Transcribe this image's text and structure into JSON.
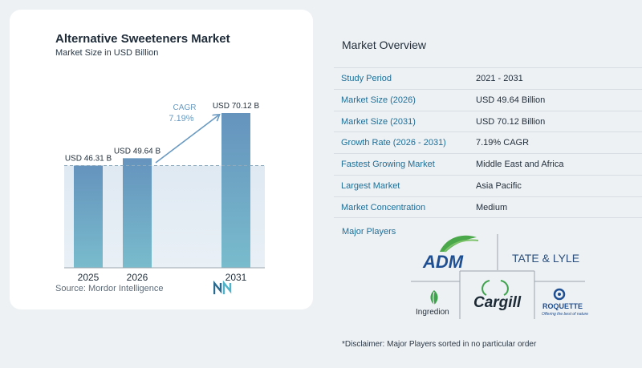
{
  "chart_data": {
    "type": "bar",
    "title": "Alternative Sweeteners Market",
    "subtitle": "Market Size in USD Billion",
    "categories": [
      "2025",
      "2026",
      "2031"
    ],
    "values": [
      46.31,
      49.64,
      70.12
    ],
    "value_labels": [
      "USD 46.31 B",
      "USD 49.64 B",
      "USD 70.12 B"
    ],
    "cagr_label": "CAGR",
    "cagr_value": "7.19%",
    "bar_color": "#6a9ac1",
    "reference_line": 46.31,
    "xlabel": "",
    "ylabel": ""
  },
  "source": "Source:  Mordor Intelligence",
  "overview": {
    "title": "Market Overview",
    "rows": [
      {
        "label": "Study Period",
        "value": "2021 - 2031"
      },
      {
        "label": "Market Size (2026)",
        "value": "USD 49.64 Billion"
      },
      {
        "label": "Market Size (2031)",
        "value": "USD 70.12 Billion"
      },
      {
        "label": "Growth Rate (2026 - 2031)",
        "value": "7.19% CAGR"
      },
      {
        "label": "Fastest Growing Market",
        "value": "Middle East and Africa"
      },
      {
        "label": "Largest Market",
        "value": "Asia Pacific"
      },
      {
        "label": "Market Concentration",
        "value": "Medium"
      }
    ]
  },
  "players": {
    "title": "Major Players",
    "logos": [
      "ADM",
      "TATE & LYLE",
      "Ingredion",
      "Cargill",
      "ROQUETTE"
    ],
    "roquette_tagline": "Offering the best of nature"
  },
  "disclaimer": "*Disclaimer: Major Players sorted in no particular order"
}
